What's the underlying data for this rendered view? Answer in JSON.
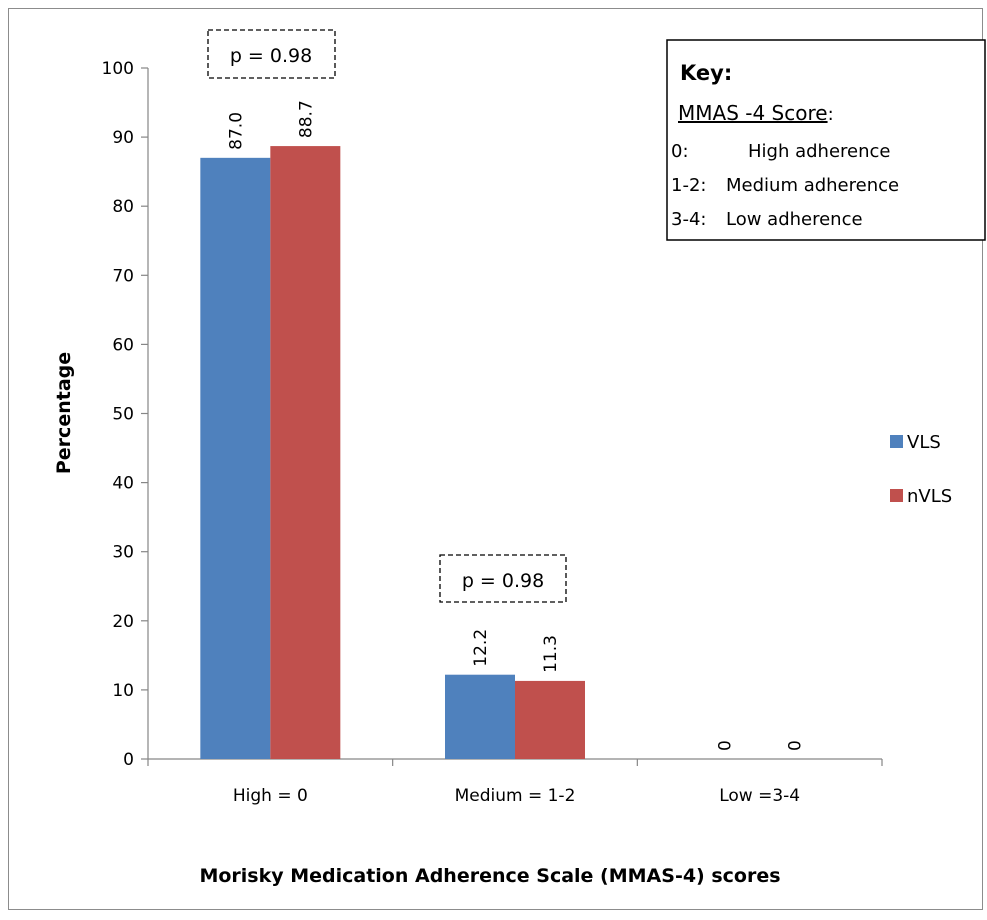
{
  "chart_data": {
    "type": "bar",
    "title": "",
    "xlabel": "Morisky Medication Adherence Scale (MMAS-4) scores",
    "ylabel": "Percentage",
    "ylim": [
      0,
      100
    ],
    "yticks": [
      "0",
      "10",
      "20",
      "30",
      "40",
      "50",
      "60",
      "70",
      "80",
      "90",
      "100"
    ],
    "categories": [
      "High = 0",
      "Medium = 1-2",
      "Low =3-4"
    ],
    "series": [
      {
        "name": "VLS",
        "values": [
          87.0,
          12.2,
          0
        ],
        "labels": [
          "87.0",
          "12.2",
          "0"
        ],
        "color": "#4f81bd"
      },
      {
        "name": "nVLS",
        "values": [
          88.7,
          11.3,
          0
        ],
        "labels": [
          "88.7",
          "11.3",
          "0"
        ],
        "color": "#c0504d"
      }
    ],
    "legend_position": "right",
    "grid": false,
    "annotations": [
      "p = 0.98",
      "p = 0.98"
    ]
  },
  "key": {
    "title": "Key:",
    "subtitle": "MMAS -4 Score",
    "subtitle_suffix": ":",
    "rows": [
      {
        "code": "0:",
        "text": "High adherence"
      },
      {
        "code": "1-2:",
        "text": "Medium adherence"
      },
      {
        "code": "3-4:",
        "text": "Low adherence"
      }
    ]
  }
}
